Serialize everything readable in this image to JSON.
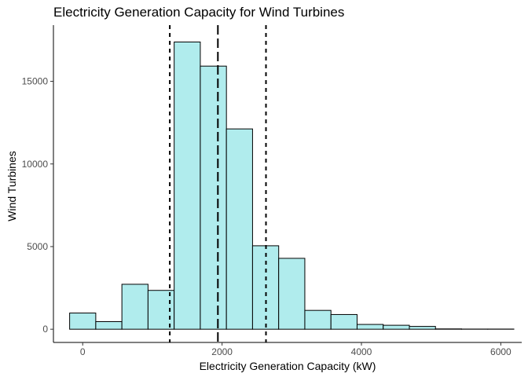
{
  "chart_data": {
    "type": "bar",
    "title": "Electricity Generation Capacity for Wind Turbines",
    "xlabel": "Electricity Generation Capacity (kW)",
    "ylabel": "Wind Turbines",
    "xlim": [
      -420,
      6300
    ],
    "ylim": [
      -800,
      18400
    ],
    "x_ticks": [
      0,
      2000,
      4000,
      6000
    ],
    "x_tick_labels": [
      "0",
      "2000",
      "4000",
      "6000"
    ],
    "y_ticks": [
      0,
      5000,
      10000,
      15000
    ],
    "y_tick_labels": [
      "0",
      "5000",
      "10000",
      "15000"
    ],
    "bin_width": 375,
    "bin_centers": [
      0,
      375,
      750,
      1125,
      1500,
      1875,
      2250,
      2625,
      3000,
      3375,
      3750,
      4125,
      4500,
      4875,
      5250,
      5625,
      6000
    ],
    "values": [
      980,
      460,
      2720,
      2350,
      17380,
      15920,
      12120,
      5050,
      4290,
      1140,
      890,
      290,
      240,
      170,
      20,
      10,
      10
    ],
    "vlines": [
      {
        "x": 1250,
        "style": "dashed"
      },
      {
        "x": 1940,
        "style": "long-dashed"
      },
      {
        "x": 2630,
        "style": "dashed"
      }
    ],
    "fill_color": "#b0eced",
    "edge_color": "#000000",
    "grid": false,
    "legend": "none"
  }
}
